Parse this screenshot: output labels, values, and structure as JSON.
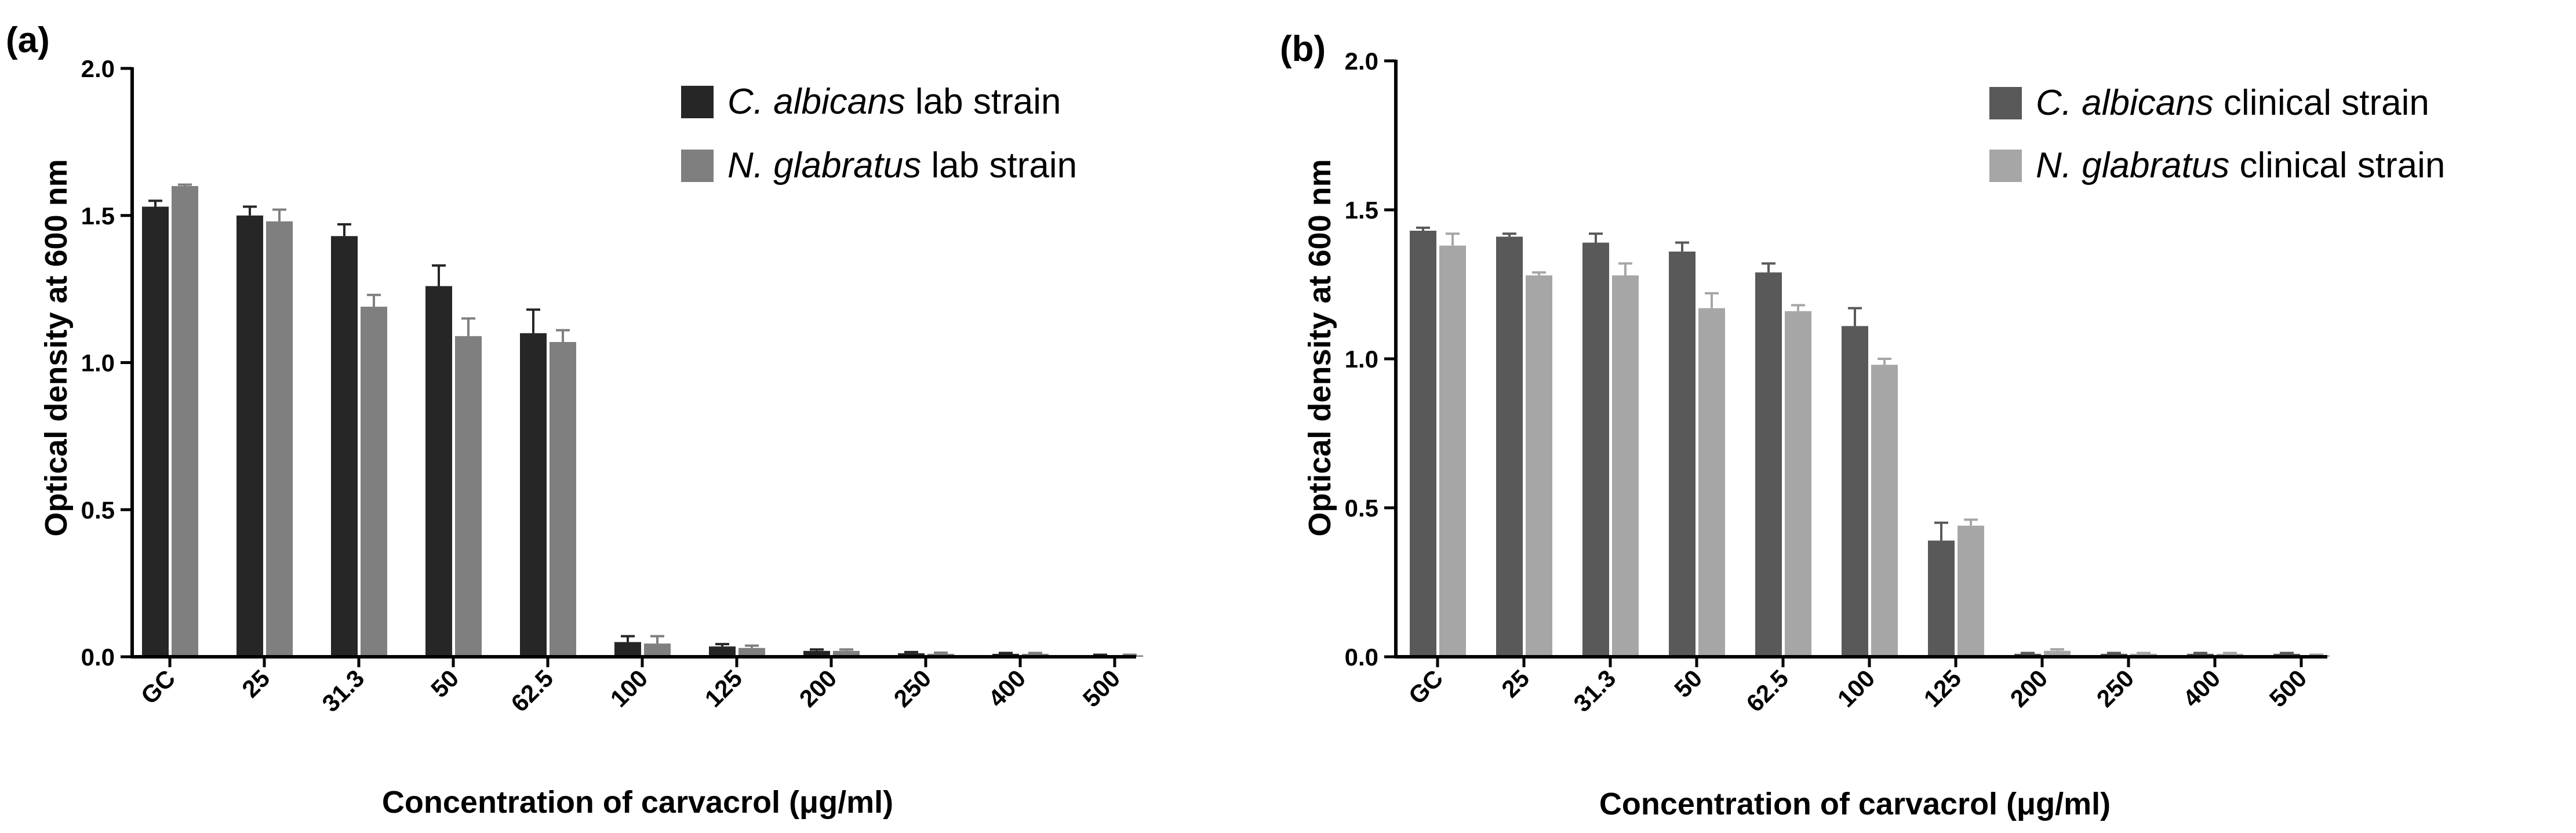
{
  "chart_data": [
    {
      "panel": "(a)",
      "type": "bar",
      "title": "",
      "xlabel": "Concentration of carvacrol (μg/ml)",
      "ylabel": "Optical density at 600 nm",
      "ylim": [
        0,
        2.0
      ],
      "yticks": [
        "0.0",
        "0.5",
        "1.0",
        "1.5",
        "2.0"
      ],
      "yticks_values": [
        0,
        0.5,
        1.0,
        1.5,
        2.0
      ],
      "categories": [
        "GC",
        "25",
        "31.3",
        "50",
        "62.5",
        "100",
        "125",
        "200",
        "250",
        "400",
        "500"
      ],
      "legend_position": "top-right",
      "series": [
        {
          "name_italic": "C. albicans",
          "name_rest": " lab strain",
          "color": "#262626",
          "values": [
            1.53,
            1.5,
            1.43,
            1.26,
            1.1,
            0.05,
            0.035,
            0.02,
            0.012,
            0.01,
            0.005
          ],
          "errors": [
            0.02,
            0.03,
            0.04,
            0.07,
            0.08,
            0.02,
            0.008,
            0.005,
            0.004,
            0.003,
            0.002
          ]
        },
        {
          "name_italic": "N. glabratus",
          "name_rest": " lab strain",
          "color": "#7f7f7f",
          "values": [
            1.6,
            1.48,
            1.19,
            1.09,
            1.07,
            0.045,
            0.03,
            0.02,
            0.01,
            0.01,
            0.005
          ],
          "errors": [
            0.005,
            0.04,
            0.04,
            0.06,
            0.04,
            0.025,
            0.008,
            0.005,
            0.004,
            0.003,
            0.002
          ]
        }
      ]
    },
    {
      "panel": "(b)",
      "type": "bar",
      "title": "",
      "xlabel": "Concentration of carvacrol (μg/ml)",
      "ylabel": "Optical density at 600 nm",
      "ylim": [
        0,
        2.0
      ],
      "yticks": [
        "0.0",
        "0.5",
        "1.0",
        "1.5",
        "2.0"
      ],
      "yticks_values": [
        0,
        0.5,
        1.0,
        1.5,
        2.0
      ],
      "categories": [
        "GC",
        "25",
        "31.3",
        "50",
        "62.5",
        "100",
        "125",
        "200",
        "250",
        "400",
        "500"
      ],
      "legend_position": "top-right",
      "series": [
        {
          "name_italic": "C. albicans",
          "name_rest": " clinical strain",
          "color": "#595959",
          "values": [
            1.43,
            1.41,
            1.39,
            1.36,
            1.29,
            1.11,
            0.39,
            0.01,
            0.01,
            0.01,
            0.01
          ],
          "errors": [
            0.01,
            0.01,
            0.03,
            0.03,
            0.03,
            0.06,
            0.06,
            0.003,
            0.003,
            0.003,
            0.003
          ]
        },
        {
          "name_italic": "N. glabratus",
          "name_rest": " clinical strain",
          "color": "#a6a6a6",
          "values": [
            1.38,
            1.28,
            1.28,
            1.17,
            1.16,
            0.98,
            0.44,
            0.02,
            0.01,
            0.01,
            0.005
          ],
          "errors": [
            0.04,
            0.01,
            0.04,
            0.05,
            0.02,
            0.02,
            0.02,
            0.005,
            0.003,
            0.003,
            0.002
          ]
        }
      ]
    }
  ]
}
